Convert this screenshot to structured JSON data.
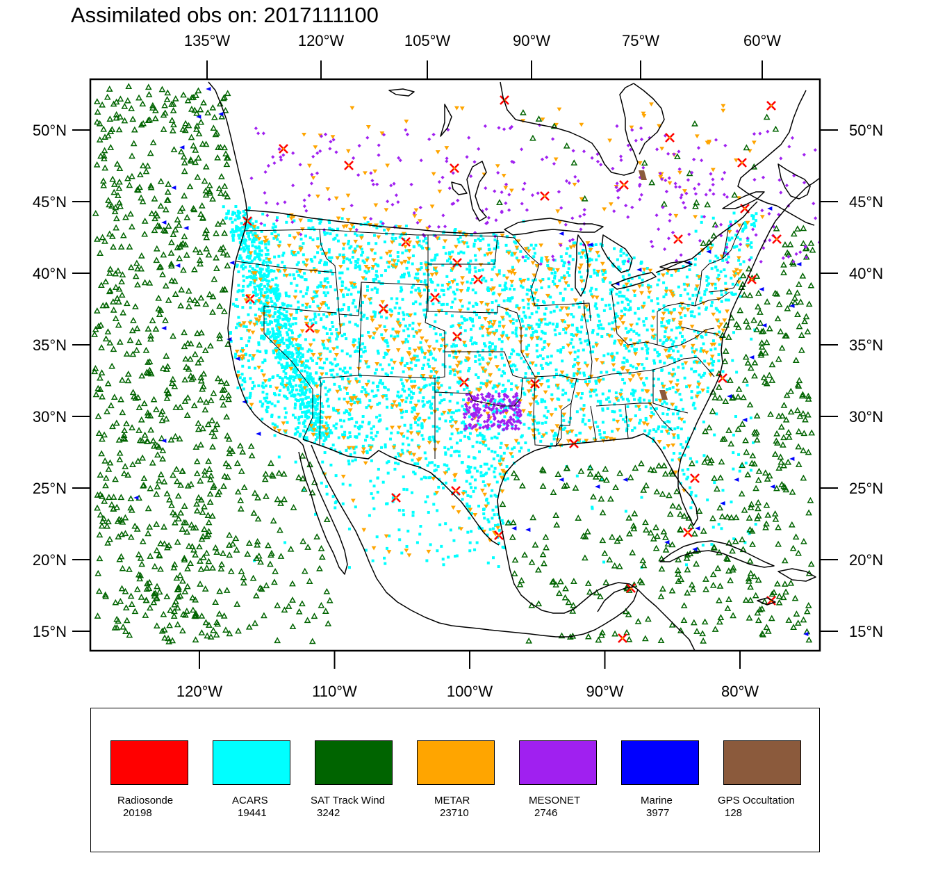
{
  "title": "Assimilated obs on: 2017111100",
  "map": {
    "top_axis_labels": [
      "135°W",
      "120°W",
      "105°W",
      "90°W",
      "75°W",
      "60°W"
    ],
    "bottom_axis_labels": [
      "120°W",
      "110°W",
      "100°W",
      "90°W",
      "80°W"
    ],
    "lat_labels": [
      "50°N",
      "45°N",
      "40°N",
      "35°N",
      "30°N",
      "25°N",
      "20°N",
      "15°N"
    ],
    "lat_values": [
      50,
      45,
      40,
      35,
      30,
      25,
      20,
      15
    ],
    "bottom_lon_values": [
      -120,
      -110,
      -100,
      -90,
      -80
    ],
    "top_lon_values": [
      -135,
      -120,
      -105,
      -90,
      -75,
      -60
    ]
  },
  "legend": [
    {
      "label": "Radiosonde",
      "count": "20198",
      "color": "#ff0000",
      "icon": "x-marker-icon"
    },
    {
      "label": "ACARS",
      "count": "19441",
      "color": "#00ffff",
      "icon": "square-dot-icon"
    },
    {
      "label": "SAT Track Wind",
      "count": "3242",
      "color": "#006400",
      "icon": "triangle-up-icon"
    },
    {
      "label": "METAR",
      "count": "23710",
      "color": "#ffa500",
      "icon": "triangle-down-icon"
    },
    {
      "label": "MESONET",
      "count": "2746",
      "color": "#a020f0",
      "icon": "diamond-icon"
    },
    {
      "label": "Marine",
      "count": "3977",
      "color": "#0000ff",
      "icon": "triangle-left-icon"
    },
    {
      "label": "GPS Occultation",
      "count": "128",
      "color": "#8b5a3c",
      "icon": "parallelogram-icon"
    }
  ]
}
